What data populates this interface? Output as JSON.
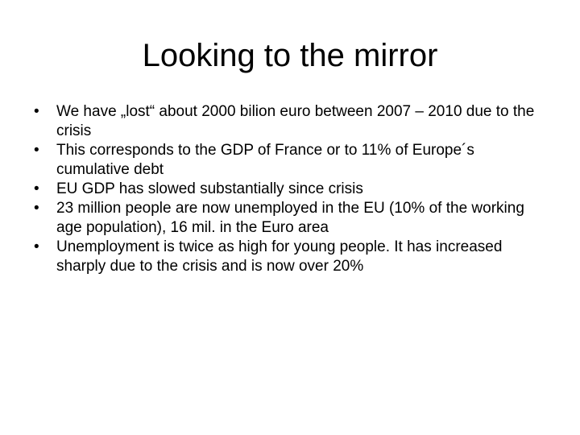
{
  "slide": {
    "title": "Looking to the mirror",
    "bullet_glyph": "•",
    "bullets": [
      "We have „lost“ about 2000 bilion euro between 2007 – 2010 due to the crisis",
      "This corresponds to the GDP of France or to 11% of Europe´s cumulative debt",
      "EU GDP has slowed substantially since crisis",
      "23 million people are now unemployed in the EU (10% of the working age population), 16 mil. in the Euro area",
      "Unemployment is twice as high for young people. It has increased sharply due to the crisis and is now over 20%"
    ]
  }
}
